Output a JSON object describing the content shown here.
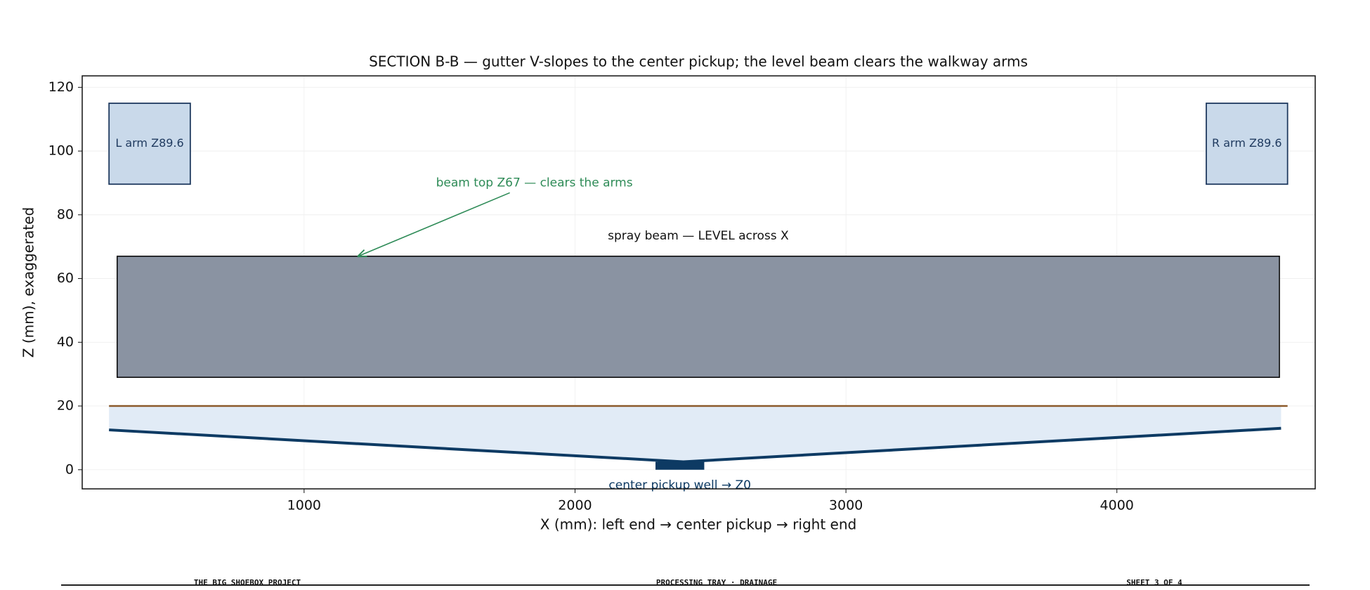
{
  "chart_data": {
    "type": "section",
    "title": "SECTION B-B — gutter V-slopes to the center pickup; the level beam clears the walkway arms",
    "xlabel": "X (mm):  left end → center pickup → right end",
    "ylabel": "Z (mm), exaggerated",
    "xlim": [
      181,
      4732
    ],
    "ylim": [
      -6,
      123.6
    ],
    "xticks": [
      1000,
      2000,
      3000,
      4000
    ],
    "yticks": [
      0,
      20,
      40,
      60,
      80,
      100,
      120
    ],
    "grid": true,
    "arms": [
      {
        "label": "L arm Z89.6",
        "x": [
          280,
          580
        ],
        "z": [
          89.6,
          115
        ],
        "color": "#c9d9ea"
      },
      {
        "label": "R arm Z89.6",
        "x": [
          4330,
          4630
        ],
        "z": [
          89.6,
          115
        ],
        "color": "#c9d9ea"
      }
    ],
    "beam": {
      "label": "spray beam — LEVEL across X",
      "x": [
        310,
        4600
      ],
      "z": [
        29,
        67
      ],
      "color": "#8a93a2"
    },
    "water_line": {
      "x": [
        280,
        4630
      ],
      "z": 20,
      "color": "#8b5a2b"
    },
    "gutter": {
      "x": [
        280,
        2400,
        4606
      ],
      "z": [
        12.5,
        2.5,
        13
      ],
      "color": "#0d3a63",
      "fill": "#e1ebf6"
    },
    "pickup_well": {
      "label": "center pickup well → Z0",
      "x": [
        2297,
        2477
      ],
      "z": [
        0,
        2.5
      ],
      "color": "#0d3a63"
    },
    "annotations": [
      {
        "text": "beam top Z67 — clears the arms",
        "x": 1850,
        "z": 90,
        "target_x": 1200,
        "target_z": 67,
        "color": "#2e8b57"
      }
    ]
  },
  "footer": {
    "left": "THE BIG SHOEBOX PROJECT",
    "center": "PROCESSING TRAY · DRAINAGE",
    "right": "SHEET 3 OF 4"
  }
}
